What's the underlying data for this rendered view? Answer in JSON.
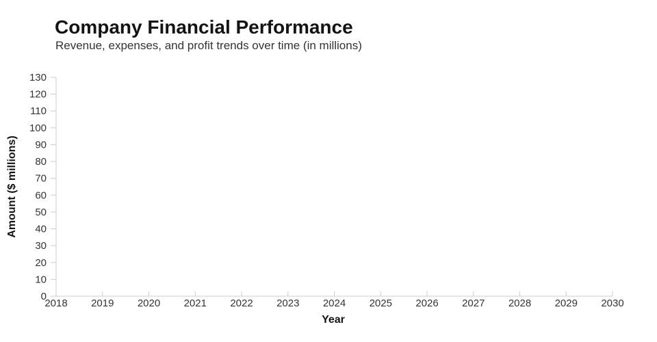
{
  "header": {
    "title": "Company Financial Performance",
    "subtitle": "Revenue, expenses, and profit trends over time (in millions)"
  },
  "chart_data": {
    "type": "line",
    "title": "Company Financial Performance",
    "subtitle": "Revenue, expenses, and profit trends over time (in millions)",
    "xlabel": "Year",
    "ylabel": "Amount ($ millions)",
    "x_ticks": [
      2018,
      2019,
      2020,
      2021,
      2022,
      2023,
      2024,
      2025,
      2026,
      2027,
      2028,
      2029,
      2030
    ],
    "xlim": [
      2018,
      2030
    ],
    "y_ticks": [
      0,
      10,
      20,
      30,
      40,
      50,
      60,
      70,
      80,
      90,
      100,
      110,
      120,
      130
    ],
    "ylim": [
      0,
      130
    ],
    "series": [],
    "grid": false,
    "legend": false,
    "plot_area_empty": true,
    "colors": {
      "axis": "#cccccc",
      "tick_label": "#333333",
      "title": "#141414",
      "subtitle": "#333333",
      "background": "#ffffff"
    }
  }
}
